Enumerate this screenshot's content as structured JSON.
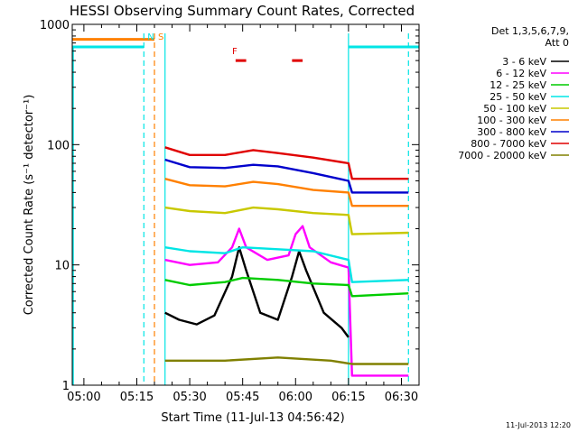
{
  "chart_data": {
    "type": "line",
    "title": "HESSI Observing Summary Count Rates, Corrected",
    "xlabel": "Start Time (11-Jul-13 04:56:42)",
    "ylabel": "Corrected Count Rate (s⁻¹ detector⁻¹)",
    "yscale": "log",
    "ylim": [
      1,
      1000
    ],
    "xlim": [
      "04:56:42",
      "06:35:00"
    ],
    "x_ticks": [
      "05:00",
      "05:15",
      "05:30",
      "05:45",
      "06:00",
      "06:15",
      "06:30"
    ],
    "y_ticks": [
      "1",
      "10",
      "100",
      "1000"
    ],
    "legend_header": [
      "Det 1,3,5,6,7,9,",
      "Att 0"
    ],
    "legend_position": "right",
    "footer": "11-Jul-2013 12:20",
    "series": [
      {
        "name": "3 - 6 keV",
        "color": "#000000",
        "points": [
          [
            "05:23",
            4.0
          ],
          [
            "05:27",
            3.5
          ],
          [
            "05:32",
            3.2
          ],
          [
            "05:37",
            3.8
          ],
          [
            "05:42",
            8.0
          ],
          [
            "05:44",
            14.0
          ],
          [
            "05:46",
            9.0
          ],
          [
            "05:50",
            4.0
          ],
          [
            "05:55",
            3.5
          ],
          [
            "05:59",
            8.0
          ],
          [
            "06:01",
            13.0
          ],
          [
            "06:03",
            9.0
          ],
          [
            "06:08",
            4.0
          ],
          [
            "06:13",
            3.0
          ],
          [
            "06:15",
            2.5
          ]
        ]
      },
      {
        "name": "6 - 12 keV",
        "color": "#ff00ff",
        "points": [
          [
            "05:23",
            11.0
          ],
          [
            "05:30",
            10.0
          ],
          [
            "05:38",
            10.5
          ],
          [
            "05:42",
            14.0
          ],
          [
            "05:44",
            20.0
          ],
          [
            "05:46",
            14.0
          ],
          [
            "05:52",
            11.0
          ],
          [
            "05:58",
            12.0
          ],
          [
            "06:00",
            18.0
          ],
          [
            "06:02",
            21.0
          ],
          [
            "06:04",
            14.0
          ],
          [
            "06:10",
            10.5
          ],
          [
            "06:15",
            9.5
          ],
          [
            "06:16",
            1.2
          ],
          [
            "06:32",
            1.2
          ]
        ]
      },
      {
        "name": "12 - 25 keV",
        "color": "#00cc00",
        "points": [
          [
            "05:23",
            7.5
          ],
          [
            "05:30",
            6.8
          ],
          [
            "05:40",
            7.2
          ],
          [
            "05:45",
            7.8
          ],
          [
            "05:55",
            7.5
          ],
          [
            "06:05",
            7.0
          ],
          [
            "06:15",
            6.8
          ],
          [
            "06:16",
            5.5
          ],
          [
            "06:32",
            5.8
          ]
        ]
      },
      {
        "name": "25 - 50 keV",
        "color": "#00e5e5",
        "points": [
          [
            "05:23",
            14.0
          ],
          [
            "05:30",
            13.0
          ],
          [
            "05:40",
            12.5
          ],
          [
            "05:45",
            14.0
          ],
          [
            "05:55",
            13.5
          ],
          [
            "06:05",
            13.0
          ],
          [
            "06:15",
            11.0
          ],
          [
            "06:16",
            7.2
          ],
          [
            "06:32",
            7.5
          ]
        ]
      },
      {
        "name": "50 - 100 keV",
        "color": "#c8c800",
        "points": [
          [
            "05:23",
            30.0
          ],
          [
            "05:30",
            28.0
          ],
          [
            "05:40",
            27.0
          ],
          [
            "05:48",
            30.0
          ],
          [
            "05:55",
            29.0
          ],
          [
            "06:05",
            27.0
          ],
          [
            "06:15",
            26.0
          ],
          [
            "06:16",
            18.0
          ],
          [
            "06:32",
            18.5
          ]
        ]
      },
      {
        "name": "100 - 300 keV",
        "color": "#ff8000",
        "points": [
          [
            "05:23",
            52.0
          ],
          [
            "05:30",
            46.0
          ],
          [
            "05:40",
            45.0
          ],
          [
            "05:48",
            49.0
          ],
          [
            "05:55",
            47.0
          ],
          [
            "06:05",
            42.0
          ],
          [
            "06:15",
            40.0
          ],
          [
            "06:16",
            31.0
          ],
          [
            "06:32",
            31.0
          ]
        ]
      },
      {
        "name": "300 - 800 keV",
        "color": "#0000cc",
        "points": [
          [
            "05:23",
            75.0
          ],
          [
            "05:30",
            65.0
          ],
          [
            "05:40",
            64.0
          ],
          [
            "05:48",
            68.0
          ],
          [
            "05:55",
            66.0
          ],
          [
            "06:05",
            58.0
          ],
          [
            "06:15",
            50.0
          ],
          [
            "06:16",
            40.0
          ],
          [
            "06:32",
            40.0
          ]
        ]
      },
      {
        "name": "800 - 7000 keV",
        "color": "#e00000",
        "points": [
          [
            "05:23",
            95.0
          ],
          [
            "05:30",
            82.0
          ],
          [
            "05:40",
            82.0
          ],
          [
            "05:48",
            90.0
          ],
          [
            "05:55",
            85.0
          ],
          [
            "06:05",
            78.0
          ],
          [
            "06:15",
            70.0
          ],
          [
            "06:16",
            52.0
          ],
          [
            "06:32",
            52.0
          ]
        ]
      },
      {
        "name": "7000 - 20000 keV",
        "color": "#808000",
        "points": [
          [
            "05:23",
            1.6
          ],
          [
            "05:40",
            1.6
          ],
          [
            "05:55",
            1.7
          ],
          [
            "06:10",
            1.6
          ],
          [
            "06:16",
            1.5
          ],
          [
            "06:32",
            1.5
          ]
        ]
      }
    ],
    "annotations": [
      {
        "label": "N",
        "color": "#00e5e5",
        "x": "05:17"
      },
      {
        "label": "S",
        "color": "#ff8000",
        "x": "05:20"
      },
      {
        "label": "F",
        "color": "#e00000",
        "x": "05:41"
      }
    ],
    "status_bars": [
      {
        "name": "attenuator",
        "color": "#ff8000",
        "from": "04:56:42",
        "to": "05:20",
        "value": 750
      },
      {
        "name": "night",
        "color": "#00e5e5",
        "from": "04:56:42",
        "to": "05:17",
        "value": 650
      },
      {
        "name": "night",
        "color": "#00e5e5",
        "from": "06:15",
        "to": "06:35",
        "value": 650
      },
      {
        "name": "flare",
        "color": "#e00000",
        "from": "05:43",
        "to": "05:46",
        "value": 500
      },
      {
        "name": "flare",
        "color": "#e00000",
        "from": "05:59",
        "to": "06:02",
        "value": 500
      }
    ],
    "vlines": [
      {
        "color": "#00e5e5",
        "x": "05:17",
        "style": "dashed"
      },
      {
        "color": "#ff8000",
        "x": "05:20",
        "style": "dashed"
      },
      {
        "color": "#00e5e5",
        "x": "05:23",
        "style": "solid"
      },
      {
        "color": "#00e5e5",
        "x": "06:15",
        "style": "solid"
      },
      {
        "color": "#00e5e5",
        "x": "06:32",
        "style": "dashed"
      }
    ],
    "grid": false
  }
}
